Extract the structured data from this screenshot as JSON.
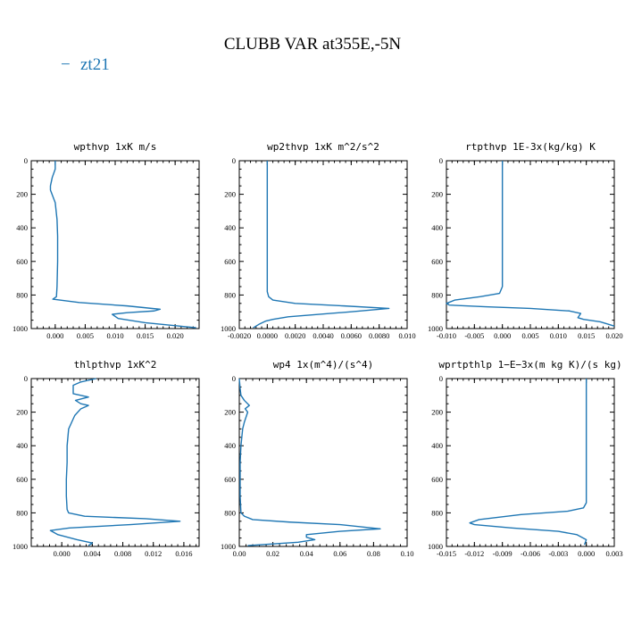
{
  "figure": {
    "title": "CLUBB VAR at355E,-5N",
    "legend": {
      "symbol": "−",
      "label": "zt21",
      "color": "#1f77b4"
    }
  },
  "chart_data": [
    {
      "type": "line",
      "title": "wpthvp   1xK m/s",
      "xlim": [
        -0.004,
        0.024
      ],
      "ylim": [
        0,
        1000
      ],
      "xticks": [
        0.0,
        0.005,
        0.01,
        0.015,
        0.02
      ],
      "xtick_labels": [
        "0.000",
        "0.005",
        "0.010",
        "0.015",
        "0.020"
      ],
      "yticks": [
        0,
        200,
        400,
        600,
        800,
        1000
      ],
      "series": [
        {
          "name": "zt21",
          "x": [
            0.0,
            0.0,
            -0.0005,
            -0.0008,
            -0.0008,
            0.0,
            0.0003,
            0.0004,
            0.0004,
            0.0003,
            0.0002,
            -0.0004,
            0.004,
            0.012,
            0.0175,
            0.0165,
            0.012,
            0.0095,
            0.0105,
            0.015,
            0.0235
          ],
          "y": [
            0,
            50,
            100,
            150,
            175,
            250,
            350,
            450,
            600,
            750,
            810,
            825,
            845,
            865,
            885,
            895,
            905,
            915,
            940,
            965,
            995
          ]
        }
      ]
    },
    {
      "type": "line",
      "title": "wp2thvp   1xK m^2/s^2",
      "xlim": [
        -0.002,
        0.01
      ],
      "ylim": [
        0,
        1000
      ],
      "xticks": [
        -0.002,
        0.0,
        0.002,
        0.004,
        0.006,
        0.008,
        0.01
      ],
      "xtick_labels": [
        "-0.0020",
        "0.0000",
        "0.0020",
        "0.0040",
        "0.0060",
        "0.0080",
        "0.010"
      ],
      "yticks": [
        0,
        200,
        400,
        600,
        800,
        1000
      ],
      "series": [
        {
          "name": "zt21",
          "x": [
            0.0,
            0.0,
            0.0,
            0.0,
            0.0001,
            0.0004,
            0.002,
            0.0055,
            0.0087,
            0.006,
            0.0015,
            0.0004,
            -0.0001,
            -0.0006,
            -0.001
          ],
          "y": [
            0,
            200,
            500,
            780,
            810,
            830,
            850,
            865,
            880,
            900,
            930,
            945,
            955,
            975,
            995
          ]
        }
      ]
    },
    {
      "type": "line",
      "title": "rtpthvp   1E-3x(kg/kg) K",
      "xlim": [
        -0.01,
        0.02
      ],
      "ylim": [
        0,
        1000
      ],
      "xticks": [
        -0.01,
        -0.005,
        0.0,
        0.005,
        0.01,
        0.015,
        0.02
      ],
      "xtick_labels": [
        "-0.010",
        "-0.005",
        "0.000",
        "0.005",
        "0.010",
        "0.015",
        "0.020"
      ],
      "yticks": [
        0,
        200,
        400,
        600,
        800,
        1000
      ],
      "series": [
        {
          "name": "zt21",
          "x": [
            0.0,
            0.0,
            0.0,
            -0.0005,
            -0.004,
            -0.0085,
            -0.01,
            -0.0095,
            -0.003,
            0.005,
            0.012,
            0.014,
            0.0135,
            0.0145,
            0.0175,
            0.02
          ],
          "y": [
            0,
            300,
            750,
            790,
            810,
            830,
            850,
            860,
            870,
            880,
            895,
            910,
            935,
            945,
            960,
            985
          ]
        }
      ]
    },
    {
      "type": "line",
      "title": "thlpthvp   1xK^2",
      "xlim": [
        -0.004,
        0.018
      ],
      "ylim": [
        0,
        1000
      ],
      "xticks": [
        0.0,
        0.004,
        0.008,
        0.012,
        0.016
      ],
      "xtick_labels": [
        "0.000",
        "0.004",
        "0.008",
        "0.012",
        "0.016"
      ],
      "yticks": [
        0,
        200,
        400,
        600,
        800,
        1000
      ],
      "series": [
        {
          "name": "zt21",
          "x": [
            0.0045,
            0.0025,
            0.0015,
            0.0015,
            0.0035,
            0.0018,
            0.0025,
            0.0035,
            0.0025,
            0.0017,
            0.0013,
            0.0009,
            0.0007,
            0.0007,
            0.0006,
            0.0006,
            0.0007,
            0.0009,
            0.003,
            0.011,
            0.0155,
            0.009,
            0.001,
            -0.0015,
            -0.0005,
            0.002,
            0.004,
            0.0035
          ],
          "y": [
            0,
            20,
            40,
            90,
            110,
            130,
            150,
            160,
            180,
            220,
            260,
            300,
            400,
            500,
            600,
            700,
            780,
            800,
            820,
            835,
            850,
            870,
            890,
            905,
            930,
            960,
            980,
            995
          ]
        }
      ]
    },
    {
      "type": "line",
      "title": "wp4   1x(m^4)/(s^4)",
      "xlim": [
        0.0,
        0.1
      ],
      "ylim": [
        0,
        1000
      ],
      "xticks": [
        0.0,
        0.02,
        0.04,
        0.06,
        0.08,
        0.1
      ],
      "xtick_labels": [
        "0.00",
        "0.02",
        "0.04",
        "0.06",
        "0.08",
        "0.10"
      ],
      "yticks": [
        0,
        200,
        400,
        600,
        800,
        1000
      ],
      "series": [
        {
          "name": "zt21",
          "x": [
            0.0,
            0.0005,
            0.001,
            0.003,
            0.006,
            0.0035,
            0.005,
            0.004,
            0.003,
            0.002,
            0.001,
            0.0005,
            0.0005,
            0.001,
            0.003,
            0.008,
            0.03,
            0.06,
            0.084,
            0.06,
            0.04,
            0.04,
            0.045,
            0.035,
            0.005
          ],
          "y": [
            0,
            60,
            100,
            130,
            160,
            180,
            200,
            230,
            260,
            300,
            400,
            500,
            700,
            800,
            820,
            840,
            855,
            870,
            895,
            910,
            930,
            945,
            960,
            975,
            995
          ]
        }
      ]
    },
    {
      "type": "line",
      "title": "wprtpthlp   1−E−3x(m kg K)/(s kg)",
      "xlim": [
        -0.015,
        0.003
      ],
      "ylim": [
        0,
        1000
      ],
      "xticks": [
        -0.015,
        -0.012,
        -0.009,
        -0.006,
        -0.003,
        0.0,
        0.003
      ],
      "xtick_labels": [
        "-0.015",
        "-0.012",
        "-0.009",
        "-0.006",
        "-0.003",
        "0.000",
        "0.003"
      ],
      "yticks": [
        0,
        200,
        400,
        600,
        800,
        1000
      ],
      "series": [
        {
          "name": "zt21",
          "x": [
            0.0,
            0.0,
            0.0,
            -0.0003,
            -0.002,
            -0.007,
            -0.0115,
            -0.0125,
            -0.012,
            -0.008,
            -0.003,
            -0.001,
            0.0,
            -0.0002
          ],
          "y": [
            0,
            300,
            740,
            770,
            790,
            810,
            840,
            860,
            870,
            890,
            910,
            930,
            960,
            990
          ]
        }
      ]
    }
  ]
}
